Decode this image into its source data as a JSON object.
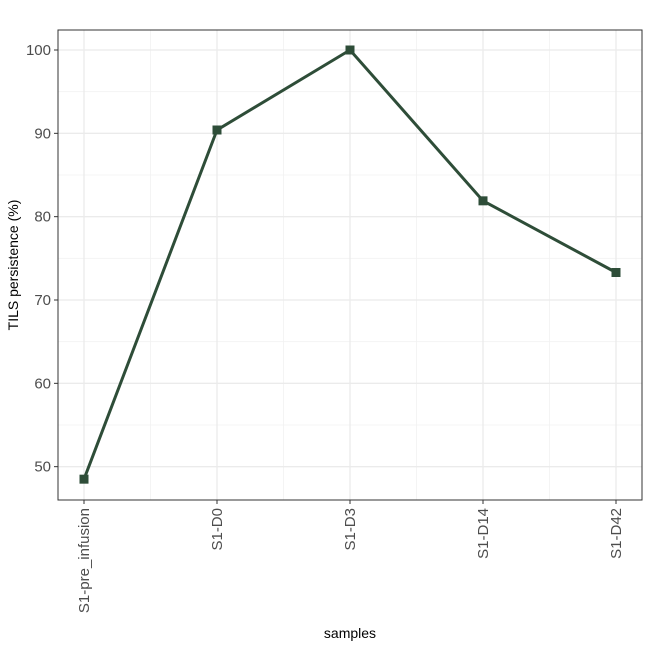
{
  "chart_data": {
    "type": "line",
    "x_label": "samples",
    "y_label": "TILS persistence (%)",
    "categories": [
      "S1-pre_infusion",
      "S1-D0",
      "S1-D3",
      "S1-D14",
      "S1-D42"
    ],
    "series": [
      {
        "name": "TILS persistence",
        "color": "#2e4d38",
        "values": [
          48.5,
          90.4,
          100,
          81.9,
          73.3
        ]
      }
    ],
    "ylim": [
      46.0,
      102.4
    ],
    "yticks": [
      50,
      60,
      70,
      80,
      90,
      100
    ],
    "grid": true
  }
}
